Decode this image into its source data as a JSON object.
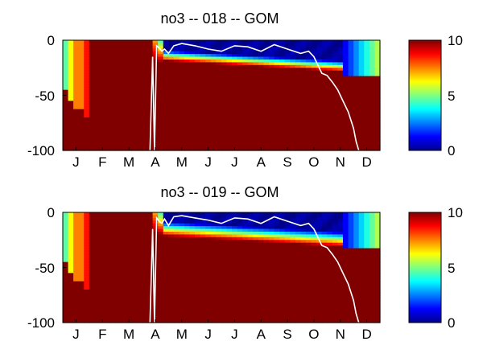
{
  "chart_data": [
    {
      "type": "heatmap",
      "title": "no3 -- 018 -- GOM",
      "xlabel": "",
      "ylabel": "",
      "x_tick_labels": [
        "J",
        "F",
        "M",
        "A",
        "M",
        "J",
        "J",
        "A",
        "S",
        "O",
        "N",
        "D"
      ],
      "y_tick_labels": [
        "0",
        "-50",
        "-100"
      ],
      "ylim": [
        -100,
        0
      ],
      "clim": [
        0,
        10
      ],
      "colormap": "jet",
      "colorbar_tick_labels": [
        "0",
        "5",
        "10"
      ],
      "line_color": "#ffffff",
      "mixed_layer_depth": {
        "months": [
          3.3,
          3.4,
          3.47,
          3.55,
          3.65,
          3.75,
          3.85,
          4.0,
          4.2,
          4.5,
          5.0,
          5.5,
          6.0,
          6.5,
          7.0,
          7.5,
          8.0,
          8.5,
          9.0,
          9.3,
          9.5,
          9.8,
          10.0,
          10.2,
          10.4,
          10.6,
          10.8,
          11.0,
          11.1,
          11.2
        ],
        "depth": [
          -100,
          -15,
          -100,
          -5,
          -7,
          -10,
          -8,
          -12,
          -5,
          -3,
          -5,
          -8,
          -10,
          -5,
          -6,
          -10,
          -4,
          -8,
          -12,
          -10,
          -15,
          -30,
          -32,
          -38,
          -45,
          -55,
          -65,
          -80,
          -92,
          -100
        ]
      }
    },
    {
      "type": "heatmap",
      "title": "no3 -- 019 -- GOM",
      "xlabel": "",
      "ylabel": "",
      "x_tick_labels": [
        "J",
        "F",
        "M",
        "A",
        "M",
        "J",
        "J",
        "A",
        "S",
        "O",
        "N",
        "D"
      ],
      "y_tick_labels": [
        "0",
        "-50",
        "-100"
      ],
      "ylim": [
        -100,
        0
      ],
      "clim": [
        0,
        10
      ],
      "colormap": "jet",
      "colorbar_tick_labels": [
        "0",
        "5",
        "10"
      ],
      "line_color": "#ffffff",
      "mixed_layer_depth": {
        "months": [
          3.3,
          3.4,
          3.47,
          3.55,
          3.65,
          3.75,
          3.85,
          4.0,
          4.2,
          4.5,
          5.0,
          5.5,
          6.0,
          6.5,
          7.0,
          7.5,
          8.0,
          8.5,
          9.0,
          9.3,
          9.5,
          9.8,
          10.0,
          10.2,
          10.4,
          10.6,
          10.8,
          11.0,
          11.1,
          11.2
        ],
        "depth": [
          -100,
          -15,
          -100,
          -5,
          -8,
          -10,
          -6,
          -12,
          -4,
          -3,
          -5,
          -7,
          -10,
          -5,
          -6,
          -10,
          -4,
          -8,
          -12,
          -10,
          -15,
          -30,
          -32,
          -38,
          -45,
          -55,
          -65,
          -80,
          -92,
          -100
        ]
      }
    }
  ]
}
